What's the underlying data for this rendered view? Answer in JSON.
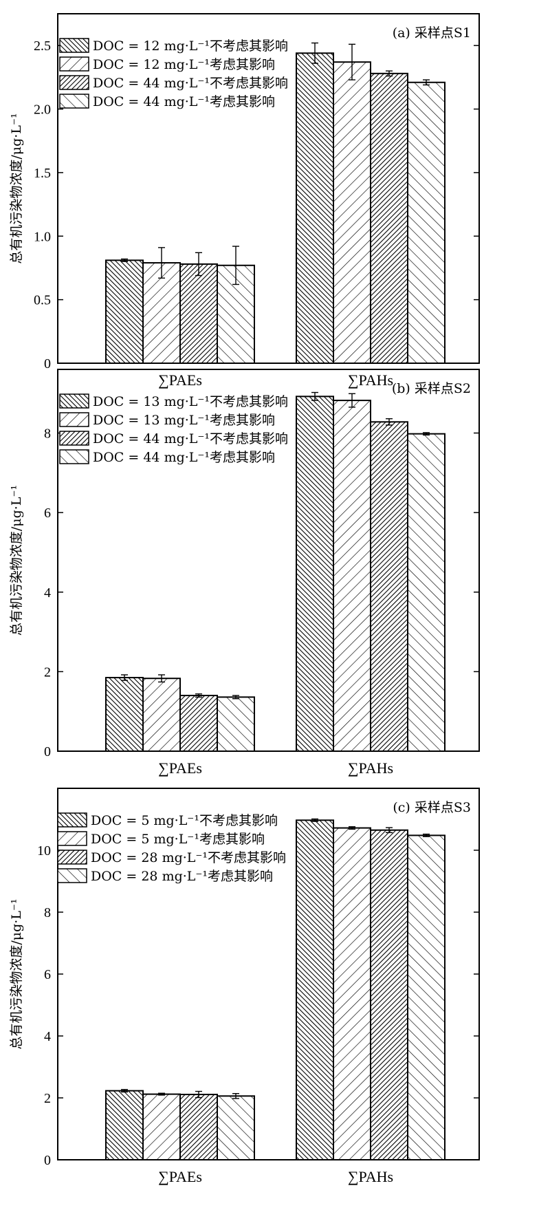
{
  "chart_data": [
    {
      "type": "bar",
      "title": "(a) 采样点S1",
      "ylabel": "总有机污染物浓度/μg·L⁻¹",
      "categories": [
        "∑PAEs",
        "∑PAHs"
      ],
      "ylim": [
        0,
        2.75
      ],
      "yticks": [
        "0",
        "0.5",
        "1.0",
        "1.5",
        "2.0",
        "2.5"
      ],
      "ytick_values": [
        0,
        0.5,
        1.0,
        1.5,
        2.0,
        2.5
      ],
      "legend_position": "top-left",
      "series": [
        {
          "name": "DOC = 12 mg·L⁻¹不考虑其影响",
          "values": [
            0.81,
            2.44
          ],
          "errors": [
            0.01,
            0.08
          ]
        },
        {
          "name": "DOC = 12 mg·L⁻¹考虑其影响",
          "values": [
            0.79,
            2.37
          ],
          "errors": [
            0.12,
            0.14
          ]
        },
        {
          "name": "DOC = 44 mg·L⁻¹不考虑其影响",
          "values": [
            0.78,
            2.28
          ],
          "errors": [
            0.09,
            0.02
          ]
        },
        {
          "name": "DOC = 44 mg·L⁻¹考虑其影响",
          "values": [
            0.77,
            2.21
          ],
          "errors": [
            0.15,
            0.02
          ]
        }
      ]
    },
    {
      "type": "bar",
      "title": "(b) 采样点S2",
      "ylabel": "总有机污染物浓度/μg·L⁻¹",
      "categories": [
        "∑PAEs",
        "∑PAHs"
      ],
      "ylim": [
        0,
        9.6
      ],
      "yticks": [
        "0",
        "2",
        "4",
        "6",
        "8"
      ],
      "ytick_values": [
        0,
        2,
        4,
        6,
        8
      ],
      "legend_position": "top-left",
      "series": [
        {
          "name": "DOC = 13 mg·L⁻¹不考虑其影响",
          "values": [
            1.85,
            8.92
          ],
          "errors": [
            0.07,
            0.1
          ]
        },
        {
          "name": "DOC = 13 mg·L⁻¹考虑其影响",
          "values": [
            1.83,
            8.82
          ],
          "errors": [
            0.09,
            0.17
          ]
        },
        {
          "name": "DOC = 44 mg·L⁻¹不考虑其影响",
          "values": [
            1.4,
            8.28
          ],
          "errors": [
            0.04,
            0.08
          ]
        },
        {
          "name": "DOC = 44 mg·L⁻¹考虑其影响",
          "values": [
            1.36,
            7.98
          ],
          "errors": [
            0.04,
            0.03
          ]
        }
      ]
    },
    {
      "type": "bar",
      "title": "(c) 采样点S3",
      "ylabel": "总有机污染物浓度/μg·L⁻¹",
      "categories": [
        "∑PAEs",
        "∑PAHs"
      ],
      "ylim": [
        0,
        12.0
      ],
      "yticks": [
        "0",
        "2",
        "4",
        "6",
        "8",
        "10"
      ],
      "ytick_values": [
        0,
        2,
        4,
        6,
        8,
        10
      ],
      "legend_position": "top-left",
      "series": [
        {
          "name": "DOC = 5 mg·L⁻¹不考虑其影响",
          "values": [
            2.23,
            10.97
          ],
          "errors": [
            0.04,
            0.04
          ]
        },
        {
          "name": "DOC = 5 mg·L⁻¹考虑其影响",
          "values": [
            2.12,
            10.72
          ],
          "errors": [
            0.03,
            0.04
          ]
        },
        {
          "name": "DOC = 28 mg·L⁻¹不考虑其影响",
          "values": [
            2.11,
            10.65
          ],
          "errors": [
            0.1,
            0.08
          ]
        },
        {
          "name": "DOC = 28 mg·L⁻¹考虑其影响",
          "values": [
            2.06,
            10.48
          ],
          "errors": [
            0.08,
            0.04
          ]
        }
      ]
    }
  ]
}
